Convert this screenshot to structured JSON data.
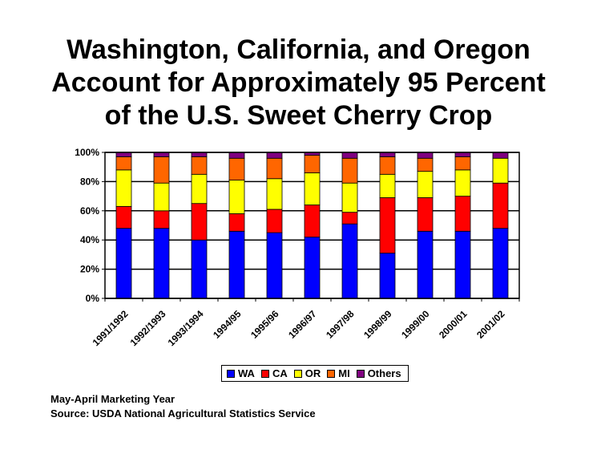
{
  "title_lines": [
    "Washington, California, and Oregon",
    "Account for Approximately 95 Percent",
    "of the U.S. Sweet Cherry Crop"
  ],
  "notes": {
    "line1": "May-April Marketing Year",
    "line2": "Source: USDA National Agricultural Statistics Service"
  },
  "chart_data": {
    "type": "bar",
    "stacked": true,
    "categories": [
      "1991/1992",
      "1992/1993",
      "1993/1994",
      "1994/95",
      "1995/96",
      "1996/97",
      "1997/98",
      "1998/99",
      "1999/00",
      "2000/01",
      "2001/02"
    ],
    "yticks": [
      "0%",
      "20%",
      "40%",
      "60%",
      "80%",
      "100%"
    ],
    "ylim": [
      0,
      100
    ],
    "grid": true,
    "legend_position": "bottom",
    "series": [
      {
        "name": "WA",
        "color": "#0000FF",
        "values": [
          48,
          48,
          40,
          46,
          45,
          42,
          51,
          31,
          46,
          46,
          48
        ]
      },
      {
        "name": "CA",
        "color": "#FF0000",
        "values": [
          15,
          12,
          25,
          12,
          16,
          22,
          8,
          38,
          23,
          24,
          31
        ]
      },
      {
        "name": "OR",
        "color": "#FFFF00",
        "values": [
          25,
          19,
          20,
          23,
          21,
          22,
          20,
          16,
          18,
          18,
          17
        ]
      },
      {
        "name": "MI",
        "color": "#FF6600",
        "values": [
          9,
          18,
          12,
          15,
          14,
          12,
          17,
          12,
          9,
          9,
          0
        ]
      },
      {
        "name": "Others",
        "color": "#800080",
        "values": [
          3,
          3,
          3,
          4,
          4,
          2,
          4,
          3,
          4,
          3,
          4
        ]
      }
    ]
  }
}
